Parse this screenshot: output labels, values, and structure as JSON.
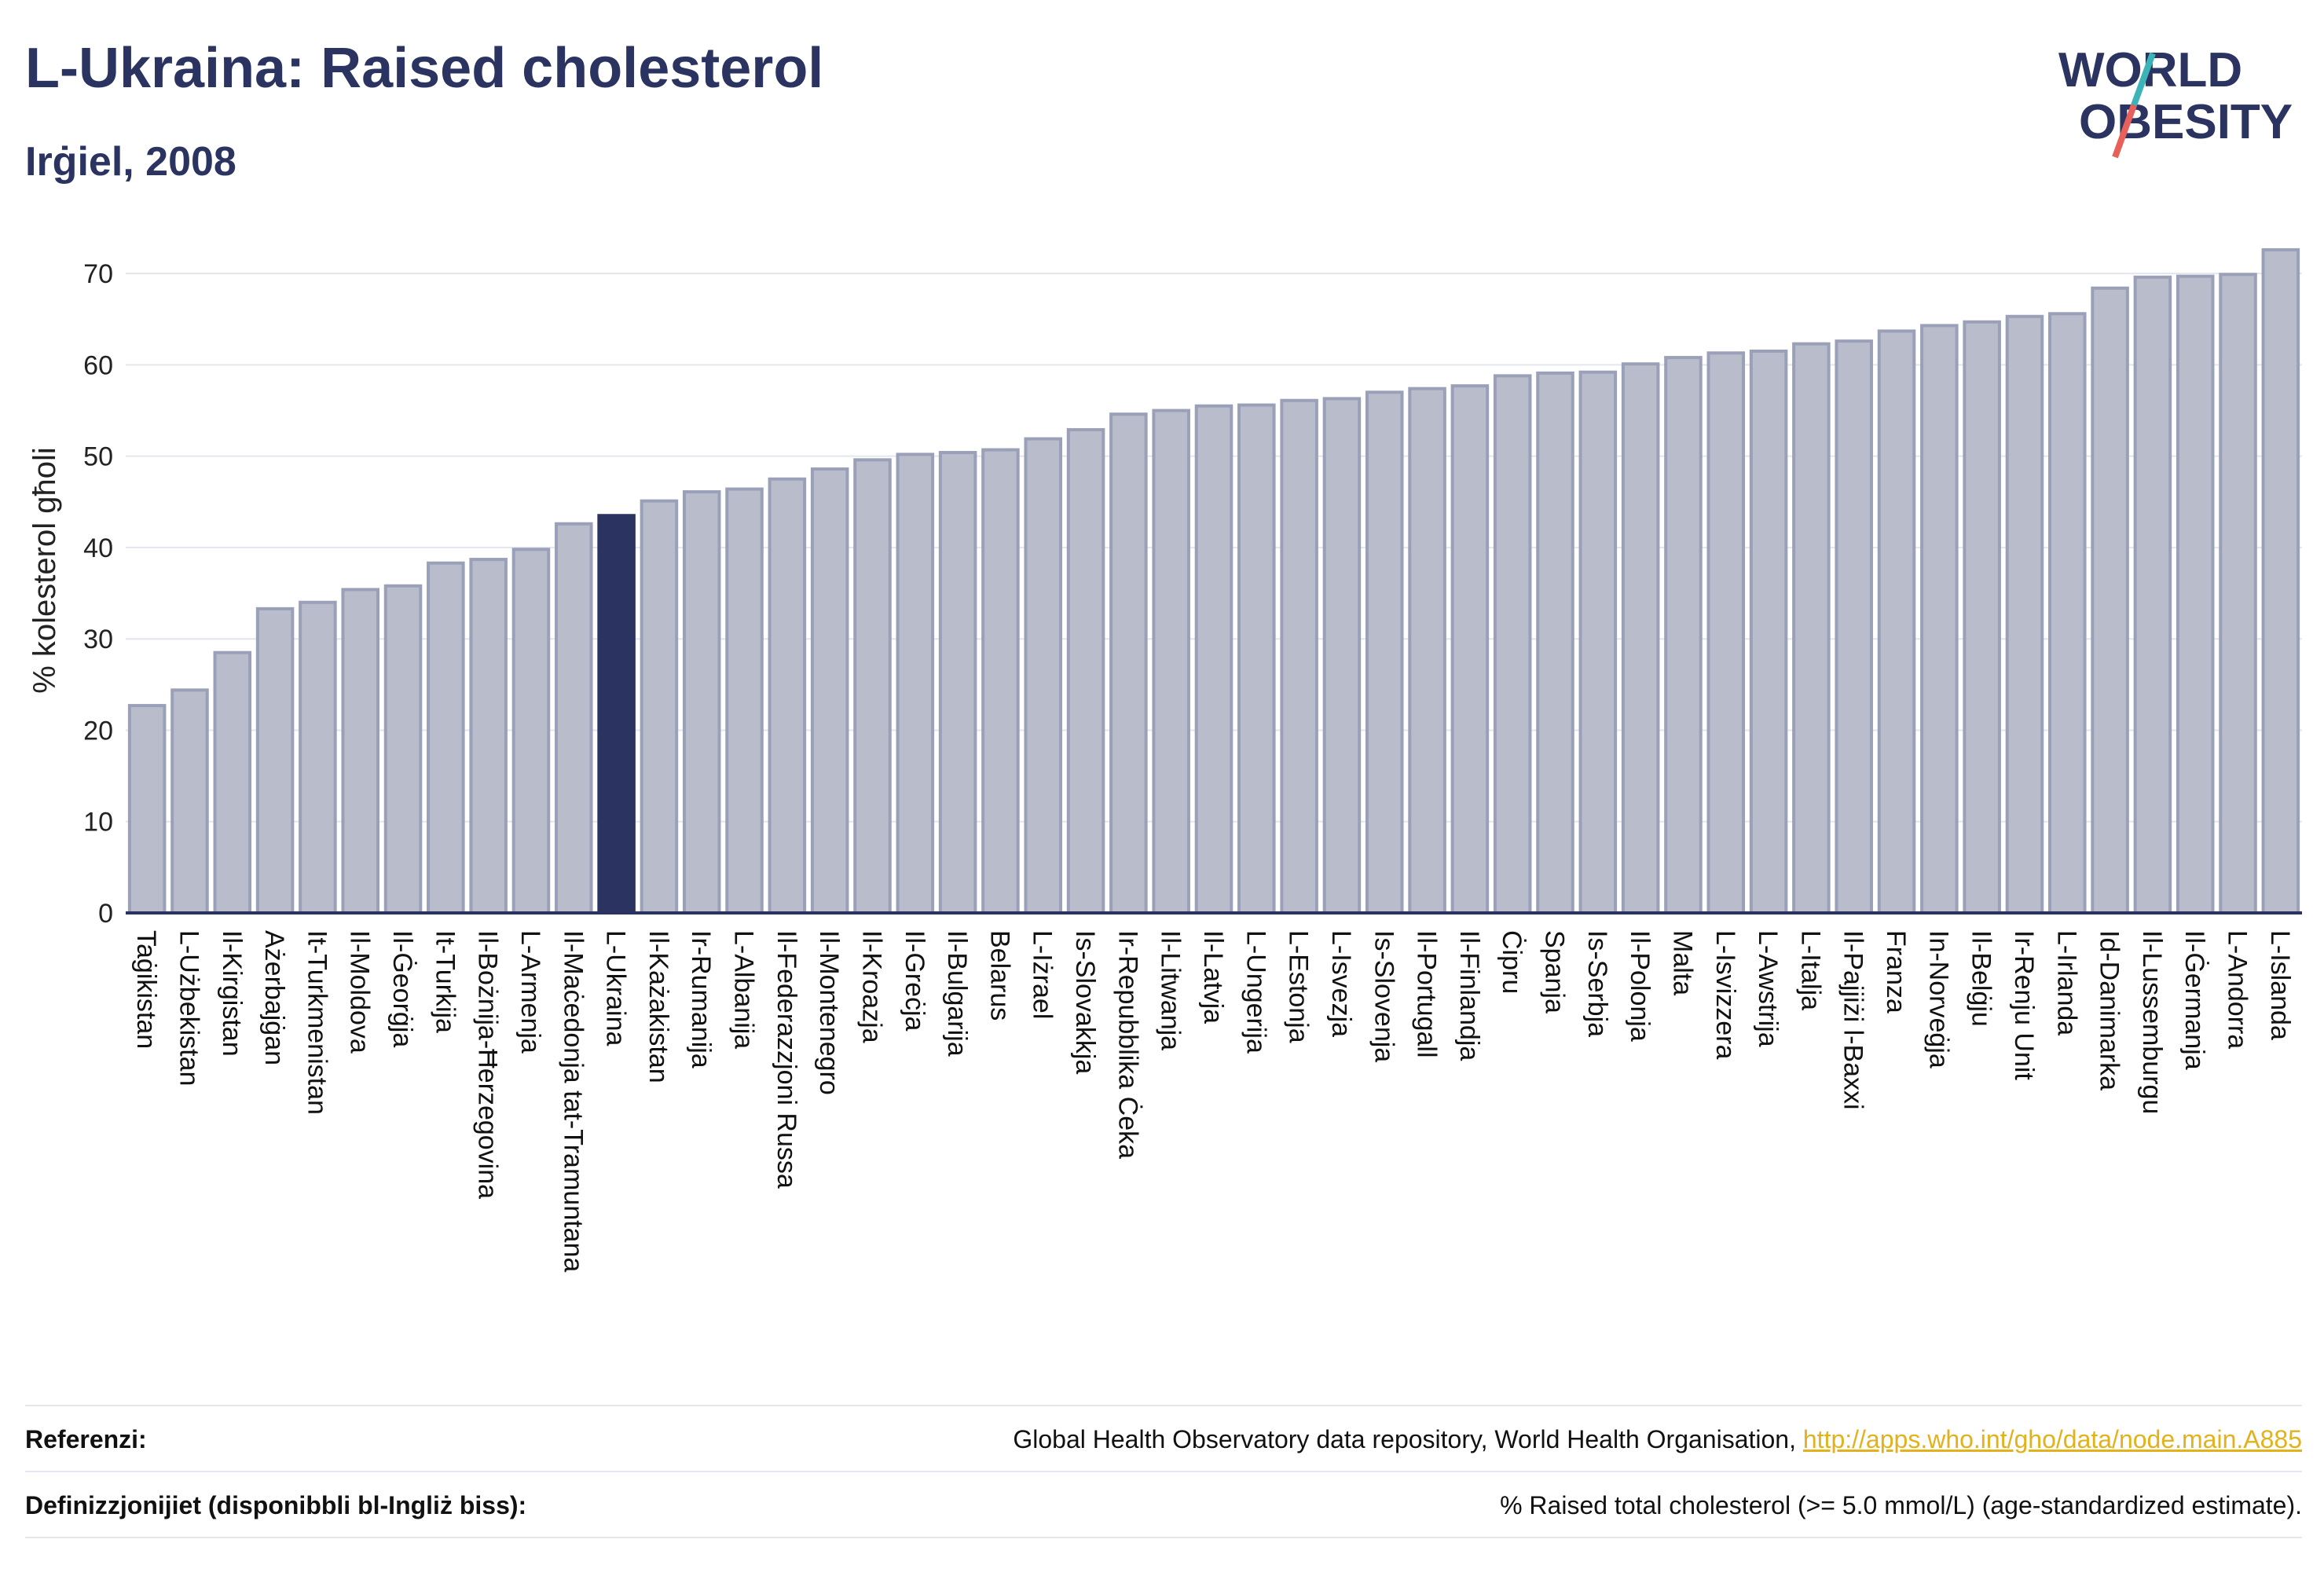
{
  "header": {
    "title": "L-Ukraina: Raised cholesterol",
    "subtitle": "Irġiel, 2008"
  },
  "logo": {
    "line1": "WORLD",
    "line2": "OBESITY"
  },
  "colors": {
    "bar": "#b9bccb",
    "bar_stroke": "#9aa0b8",
    "highlight": "#2b3361",
    "axis": "#2b3361",
    "grid": "#e4e6ee",
    "link": "#e2b21c",
    "logo_teal": "#3bb3b7",
    "logo_red": "#e8605a"
  },
  "chart_data": {
    "type": "bar",
    "ylabel": "% kolesterol għoli",
    "ylim": [
      0,
      75
    ],
    "yticks": [
      0,
      10,
      20,
      30,
      40,
      50,
      60,
      70
    ],
    "highlight": "L-Ukraina",
    "categories": [
      "Taġikistan",
      "L-Użbekistan",
      "Il-Kirgistan",
      "Ażerbajġan",
      "It-Turkmenistan",
      "Il-Moldova",
      "Il-Ġeorġja",
      "It-Turkija",
      "Il-Bożnija-Ħerzegovina",
      "L-Armenja",
      "Il-Maċedonja tat-Tramuntana",
      "L-Ukraina",
      "Il-Każakistan",
      "Ir-Rumanija",
      "L-Albanija",
      "Il-Federazzjoni Russa",
      "Il-Montenegro",
      "Il-Kroazja",
      "Il-Greċja",
      "Il-Bulgarija",
      "Belarus",
      "L-Iżrael",
      "Is-Slovakkja",
      "Ir-Repubblika Ċeka",
      "Il-Litwanja",
      "Il-Latvja",
      "L-Ungerija",
      "L-Estonja",
      "L-Isvezja",
      "Is-Slovenja",
      "Il-Portugall",
      "Il-Finlandja",
      "Ċipru",
      "Spanja",
      "Is-Serbja",
      "Il-Polonja",
      "Malta",
      "L-Isvizzera",
      "L-Awstrija",
      "L-Italja",
      "Il-Pajjiżi l-Baxxi",
      "Franza",
      "In-Norveġja",
      "Il-Belġju",
      "Ir-Renju Unit",
      "L-Irlanda",
      "Id-Danimarka",
      "Il-Lussemburgu",
      "Il-Ġermanja",
      "L-Andorra",
      "L-Islanda"
    ],
    "values": [
      22.7,
      24.4,
      28.5,
      33.3,
      34.0,
      35.4,
      35.8,
      38.3,
      38.7,
      39.8,
      42.6,
      43.5,
      45.1,
      46.1,
      46.4,
      47.5,
      48.6,
      49.6,
      50.2,
      50.4,
      50.7,
      51.9,
      52.9,
      54.6,
      55.0,
      55.5,
      55.6,
      56.1,
      56.3,
      57.0,
      57.4,
      57.7,
      58.8,
      59.1,
      59.2,
      60.1,
      60.8,
      61.3,
      61.5,
      62.3,
      62.6,
      63.7,
      64.3,
      64.7,
      65.3,
      65.6,
      68.4,
      69.6,
      69.7,
      69.9,
      72.6
    ]
  },
  "footer": {
    "references_label": "Referenzi:",
    "references_text": "Global Health Observatory data repository, World Health Organisation, ",
    "references_link": "http://apps.who.int/gho/data/node.main.A885",
    "definitions_label": "Definizzjonijiet (disponibbli bl-Ingliż biss):",
    "definitions_text": "% Raised total cholesterol (>= 5.0 mmol/L) (age-standardized estimate)."
  }
}
